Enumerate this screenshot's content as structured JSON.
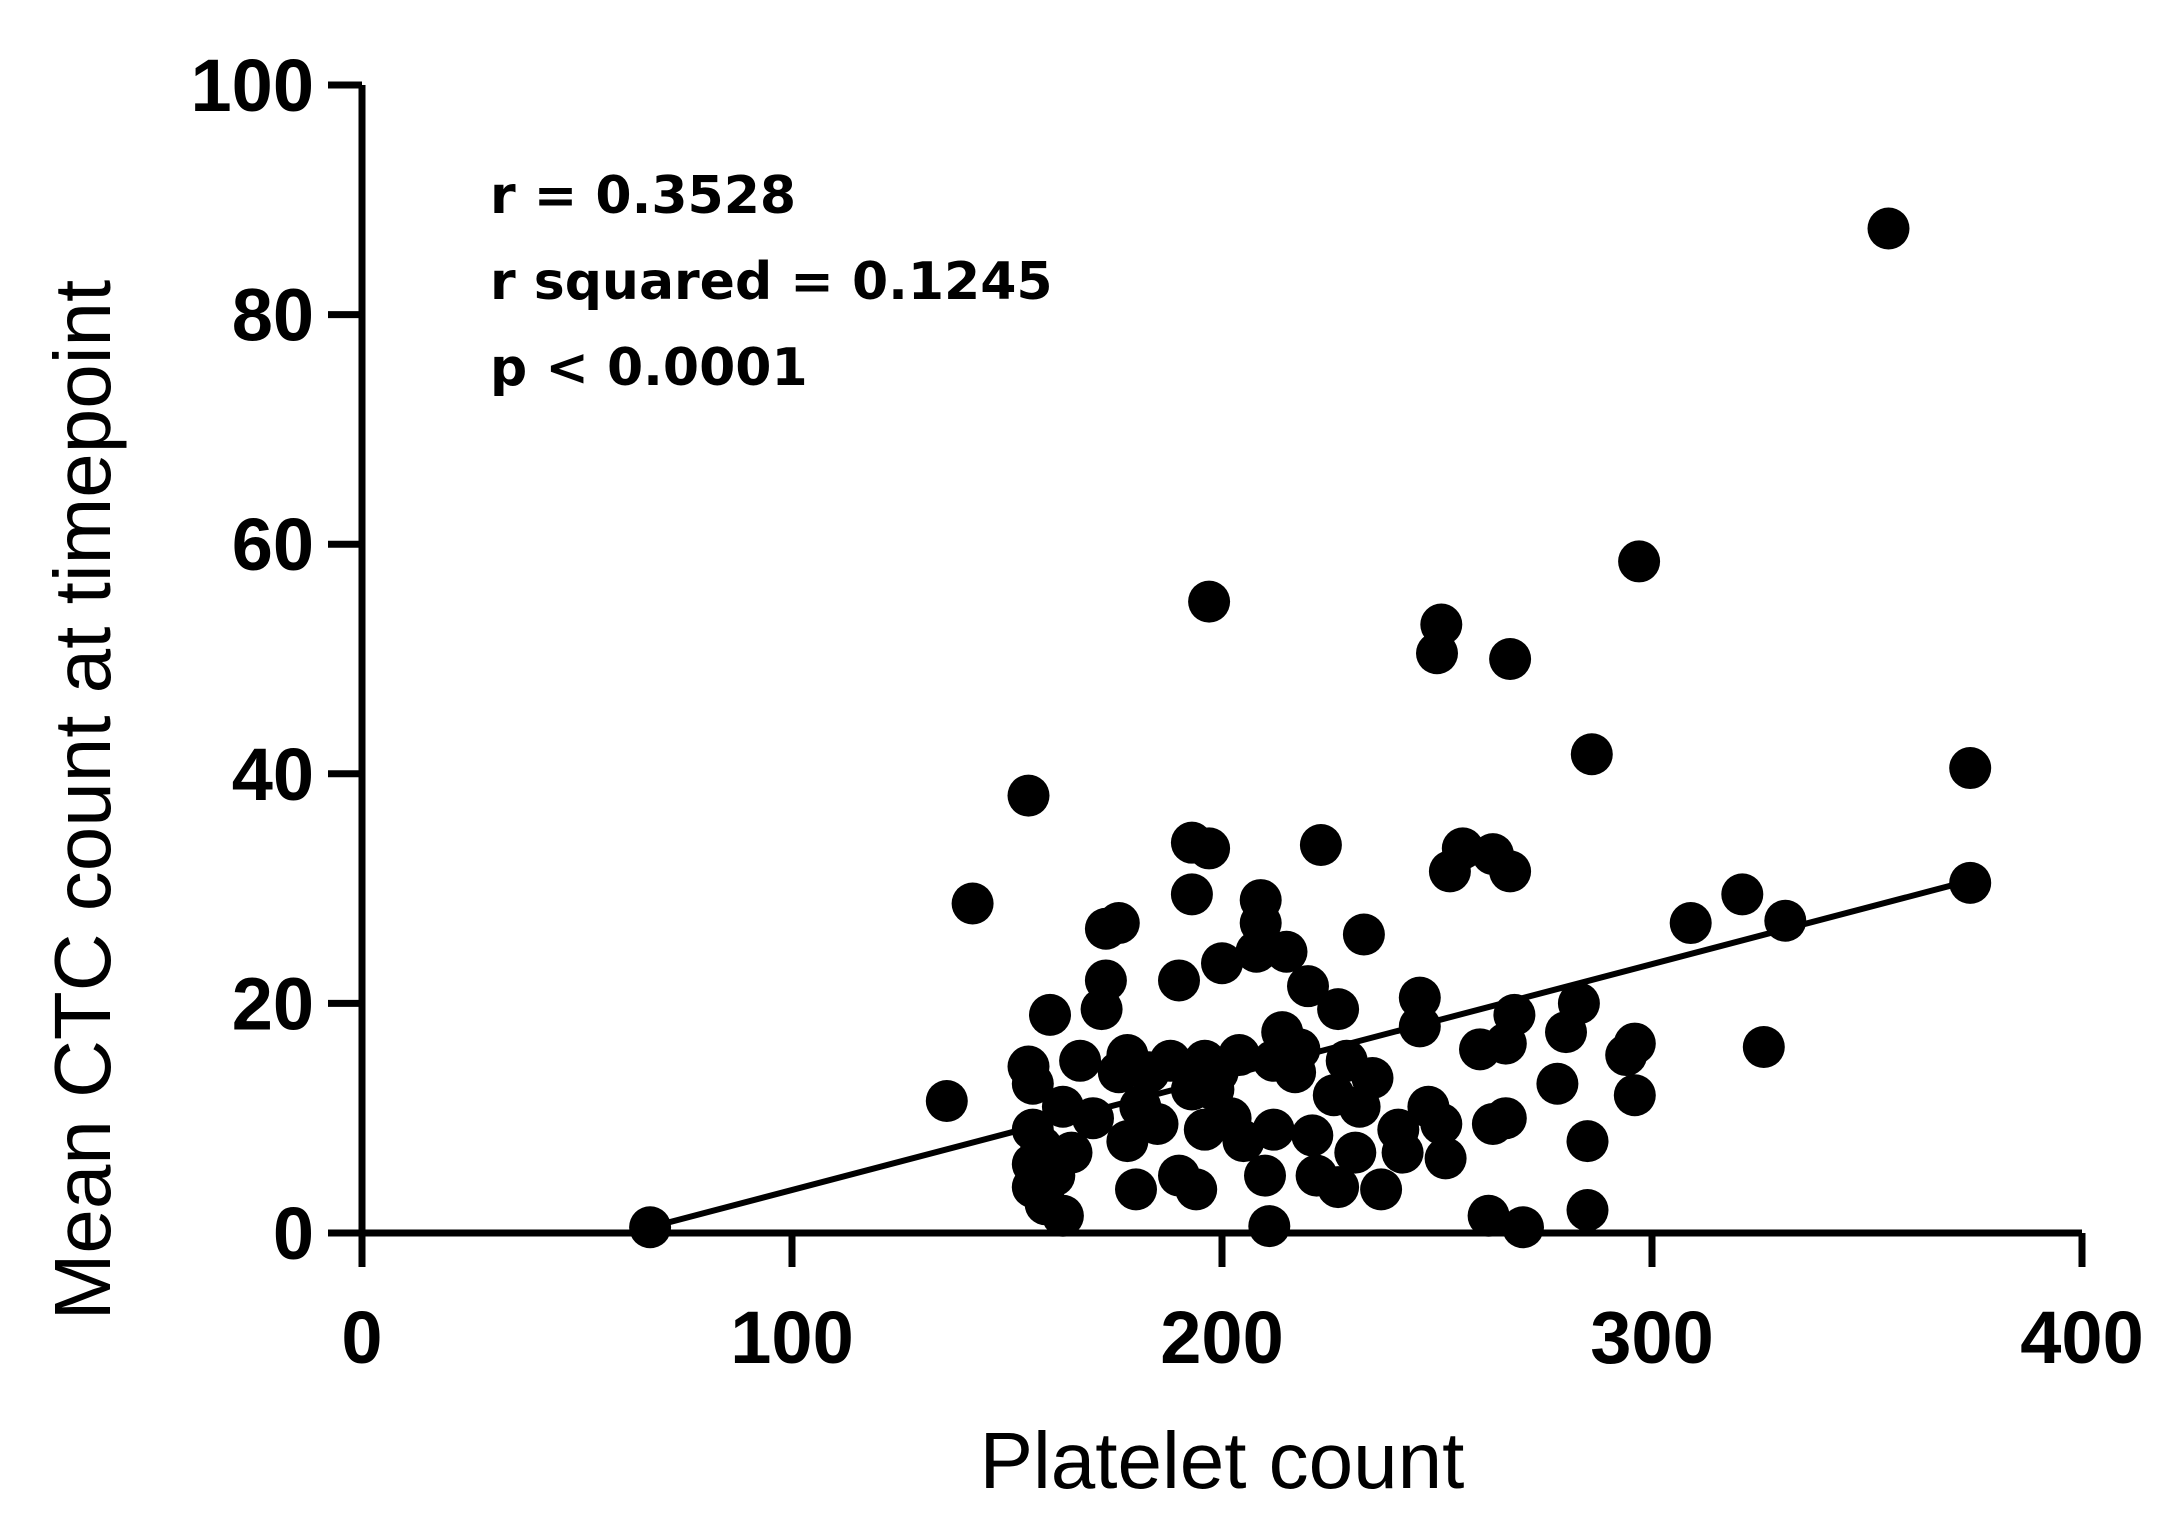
{
  "chart_data": {
    "type": "scatter",
    "title": "",
    "xlabel": "Platelet count",
    "ylabel": "Mean CTC count at timepoint",
    "xlim": [
      0,
      400
    ],
    "ylim": [
      0,
      100
    ],
    "x_ticks": [
      0,
      100,
      200,
      300,
      400
    ],
    "y_ticks": [
      0,
      20,
      40,
      60,
      80,
      100
    ],
    "x_tick_labels": [
      "0",
      "100",
      "200",
      "300",
      "400"
    ],
    "y_tick_labels": [
      "0",
      "20",
      "40",
      "60",
      "80",
      "100"
    ],
    "grid": false,
    "annotations": [
      "r = 0.3528",
      "r squared = 0.1245",
      "p < 0.0001"
    ],
    "regression_line": {
      "x": [
        67,
        375
      ],
      "y": [
        0.5,
        30.8
      ]
    },
    "points": [
      [
        67,
        0.5
      ],
      [
        136,
        11.5
      ],
      [
        142,
        28.7
      ],
      [
        155,
        38.1
      ],
      [
        155,
        14.5
      ],
      [
        156,
        13
      ],
      [
        156,
        9
      ],
      [
        156,
        6
      ],
      [
        156,
        4
      ],
      [
        158,
        7.5
      ],
      [
        159,
        2.5
      ],
      [
        160,
        19
      ],
      [
        161,
        5
      ],
      [
        163,
        11
      ],
      [
        163,
        1.5
      ],
      [
        165,
        7
      ],
      [
        167,
        15
      ],
      [
        170,
        10
      ],
      [
        172,
        19.5
      ],
      [
        173,
        22
      ],
      [
        173,
        26.5
      ],
      [
        176,
        27
      ],
      [
        176,
        14
      ],
      [
        178,
        15.5
      ],
      [
        178,
        8
      ],
      [
        180,
        3.8
      ],
      [
        181,
        11
      ],
      [
        183,
        14
      ],
      [
        185,
        9.5
      ],
      [
        188,
        15
      ],
      [
        190,
        22
      ],
      [
        190,
        5
      ],
      [
        193,
        34
      ],
      [
        193,
        29.5
      ],
      [
        193,
        12.5
      ],
      [
        194,
        3.8
      ],
      [
        196,
        15
      ],
      [
        196,
        9
      ],
      [
        197,
        55
      ],
      [
        197,
        33.5
      ],
      [
        198,
        12.5
      ],
      [
        199,
        14
      ],
      [
        200,
        23.5
      ],
      [
        202,
        10
      ],
      [
        204,
        15.5
      ],
      [
        205,
        8
      ],
      [
        208,
        24.5
      ],
      [
        209,
        29
      ],
      [
        209,
        27
      ],
      [
        210,
        5
      ],
      [
        211,
        0.6
      ],
      [
        212,
        15
      ],
      [
        212,
        9
      ],
      [
        214,
        17.5
      ],
      [
        215,
        24.5
      ],
      [
        217,
        14
      ],
      [
        218,
        16
      ],
      [
        220,
        21.5
      ],
      [
        221,
        8.5
      ],
      [
        222,
        5
      ],
      [
        223,
        33.8
      ],
      [
        226,
        12
      ],
      [
        227,
        19.5
      ],
      [
        227,
        4
      ],
      [
        229,
        15
      ],
      [
        231,
        7
      ],
      [
        232,
        11
      ],
      [
        233,
        26
      ],
      [
        235,
        13.5
      ],
      [
        237,
        3.8
      ],
      [
        241,
        9
      ],
      [
        242,
        7
      ],
      [
        246,
        20.5
      ],
      [
        246,
        18
      ],
      [
        248,
        11
      ],
      [
        250,
        50.5
      ],
      [
        251,
        53
      ],
      [
        251,
        9.5
      ],
      [
        252,
        6.5
      ],
      [
        253,
        31.5
      ],
      [
        256,
        33.5
      ],
      [
        260,
        16
      ],
      [
        262,
        1.5
      ],
      [
        263,
        9.5
      ],
      [
        263,
        33
      ],
      [
        266,
        16.5
      ],
      [
        266,
        10
      ],
      [
        267,
        50
      ],
      [
        267,
        31.5
      ],
      [
        268,
        19
      ],
      [
        270,
        0.5
      ],
      [
        278,
        13
      ],
      [
        280,
        17.5
      ],
      [
        283,
        20
      ],
      [
        285,
        8
      ],
      [
        285,
        2
      ],
      [
        286,
        41.7
      ],
      [
        294,
        15.5
      ],
      [
        296,
        16.5
      ],
      [
        296,
        12
      ],
      [
        297,
        58.5
      ],
      [
        309,
        27
      ],
      [
        321,
        29.5
      ],
      [
        326,
        16.2
      ],
      [
        331,
        27.2
      ],
      [
        355,
        87.5
      ],
      [
        374,
        40.5
      ],
      [
        374,
        30.5
      ]
    ]
  }
}
